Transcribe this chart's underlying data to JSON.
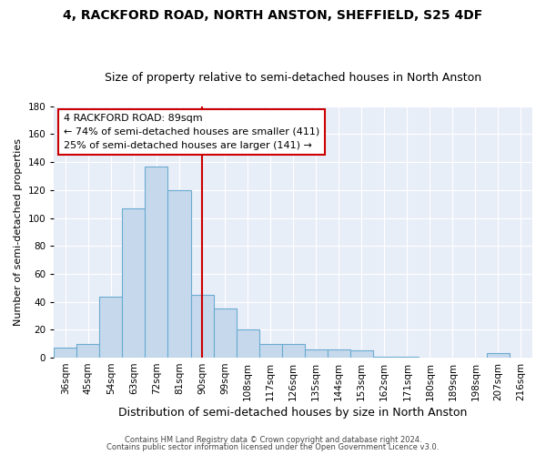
{
  "title": "4, RACKFORD ROAD, NORTH ANSTON, SHEFFIELD, S25 4DF",
  "subtitle": "Size of property relative to semi-detached houses in North Anston",
  "xlabel": "Distribution of semi-detached houses by size in North Anston",
  "ylabel": "Number of semi-detached properties",
  "bar_labels": [
    "36sqm",
    "45sqm",
    "54sqm",
    "63sqm",
    "72sqm",
    "81sqm",
    "90sqm",
    "99sqm",
    "108sqm",
    "117sqm",
    "126sqm",
    "135sqm",
    "144sqm",
    "153sqm",
    "162sqm",
    "171sqm",
    "180sqm",
    "189sqm",
    "198sqm",
    "207sqm",
    "216sqm"
  ],
  "bar_values": [
    7,
    10,
    44,
    107,
    137,
    120,
    45,
    35,
    20,
    10,
    10,
    6,
    6,
    5,
    1,
    1,
    0,
    0,
    0,
    3,
    0
  ],
  "bin_edges": [
    31.5,
    40.5,
    49.5,
    58.5,
    67.5,
    76.5,
    85.5,
    94.5,
    103.5,
    112.5,
    121.5,
    130.5,
    139.5,
    148.5,
    157.5,
    166.5,
    175.5,
    184.5,
    193.5,
    202.5,
    211.5,
    220.5
  ],
  "bar_color": "#c6d9ec",
  "bar_edge_color": "#6aabd2",
  "vline_x": 90,
  "vline_color": "#cc0000",
  "ylim": [
    0,
    180
  ],
  "yticks": [
    0,
    20,
    40,
    60,
    80,
    100,
    120,
    140,
    160,
    180
  ],
  "annotation_title": "4 RACKFORD ROAD: 89sqm",
  "annotation_line1": "← 74% of semi-detached houses are smaller (411)",
  "annotation_line2": "25% of semi-detached houses are larger (141) →",
  "annotation_box_color": "#ffffff",
  "annotation_box_edge": "#cc0000",
  "footnote1": "Contains HM Land Registry data © Crown copyright and database right 2024.",
  "footnote2": "Contains public sector information licensed under the Open Government Licence v3.0.",
  "fig_facecolor": "#ffffff",
  "plot_facecolor": "#e8eef8",
  "grid_color": "#ffffff",
  "title_fontsize": 10,
  "subtitle_fontsize": 9,
  "xlabel_fontsize": 9,
  "ylabel_fontsize": 8,
  "tick_fontsize": 7.5,
  "annot_fontsize": 8
}
